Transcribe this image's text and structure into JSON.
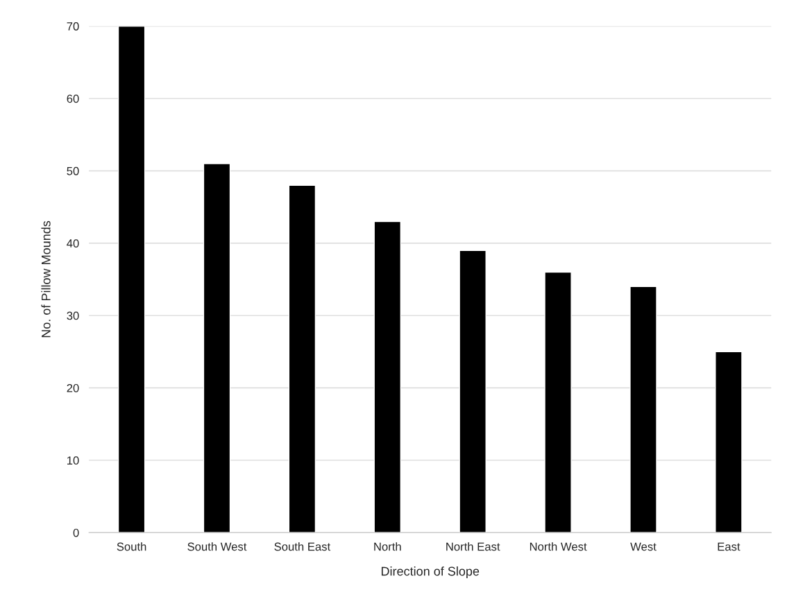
{
  "chart_data": {
    "type": "bar",
    "xlabel": "Direction of Slope",
    "ylabel": "No. of Pillow Mounds",
    "categories": [
      "South",
      "South West",
      "South East",
      "North",
      "North East",
      "North West",
      "West",
      "East"
    ],
    "values": [
      70,
      51,
      48,
      43,
      39,
      36,
      34,
      25
    ],
    "color": "#000000",
    "ylim": [
      0,
      70
    ],
    "yticks": [
      0,
      10,
      20,
      30,
      40,
      50,
      60,
      70
    ],
    "grid": "y",
    "legend": false
  }
}
